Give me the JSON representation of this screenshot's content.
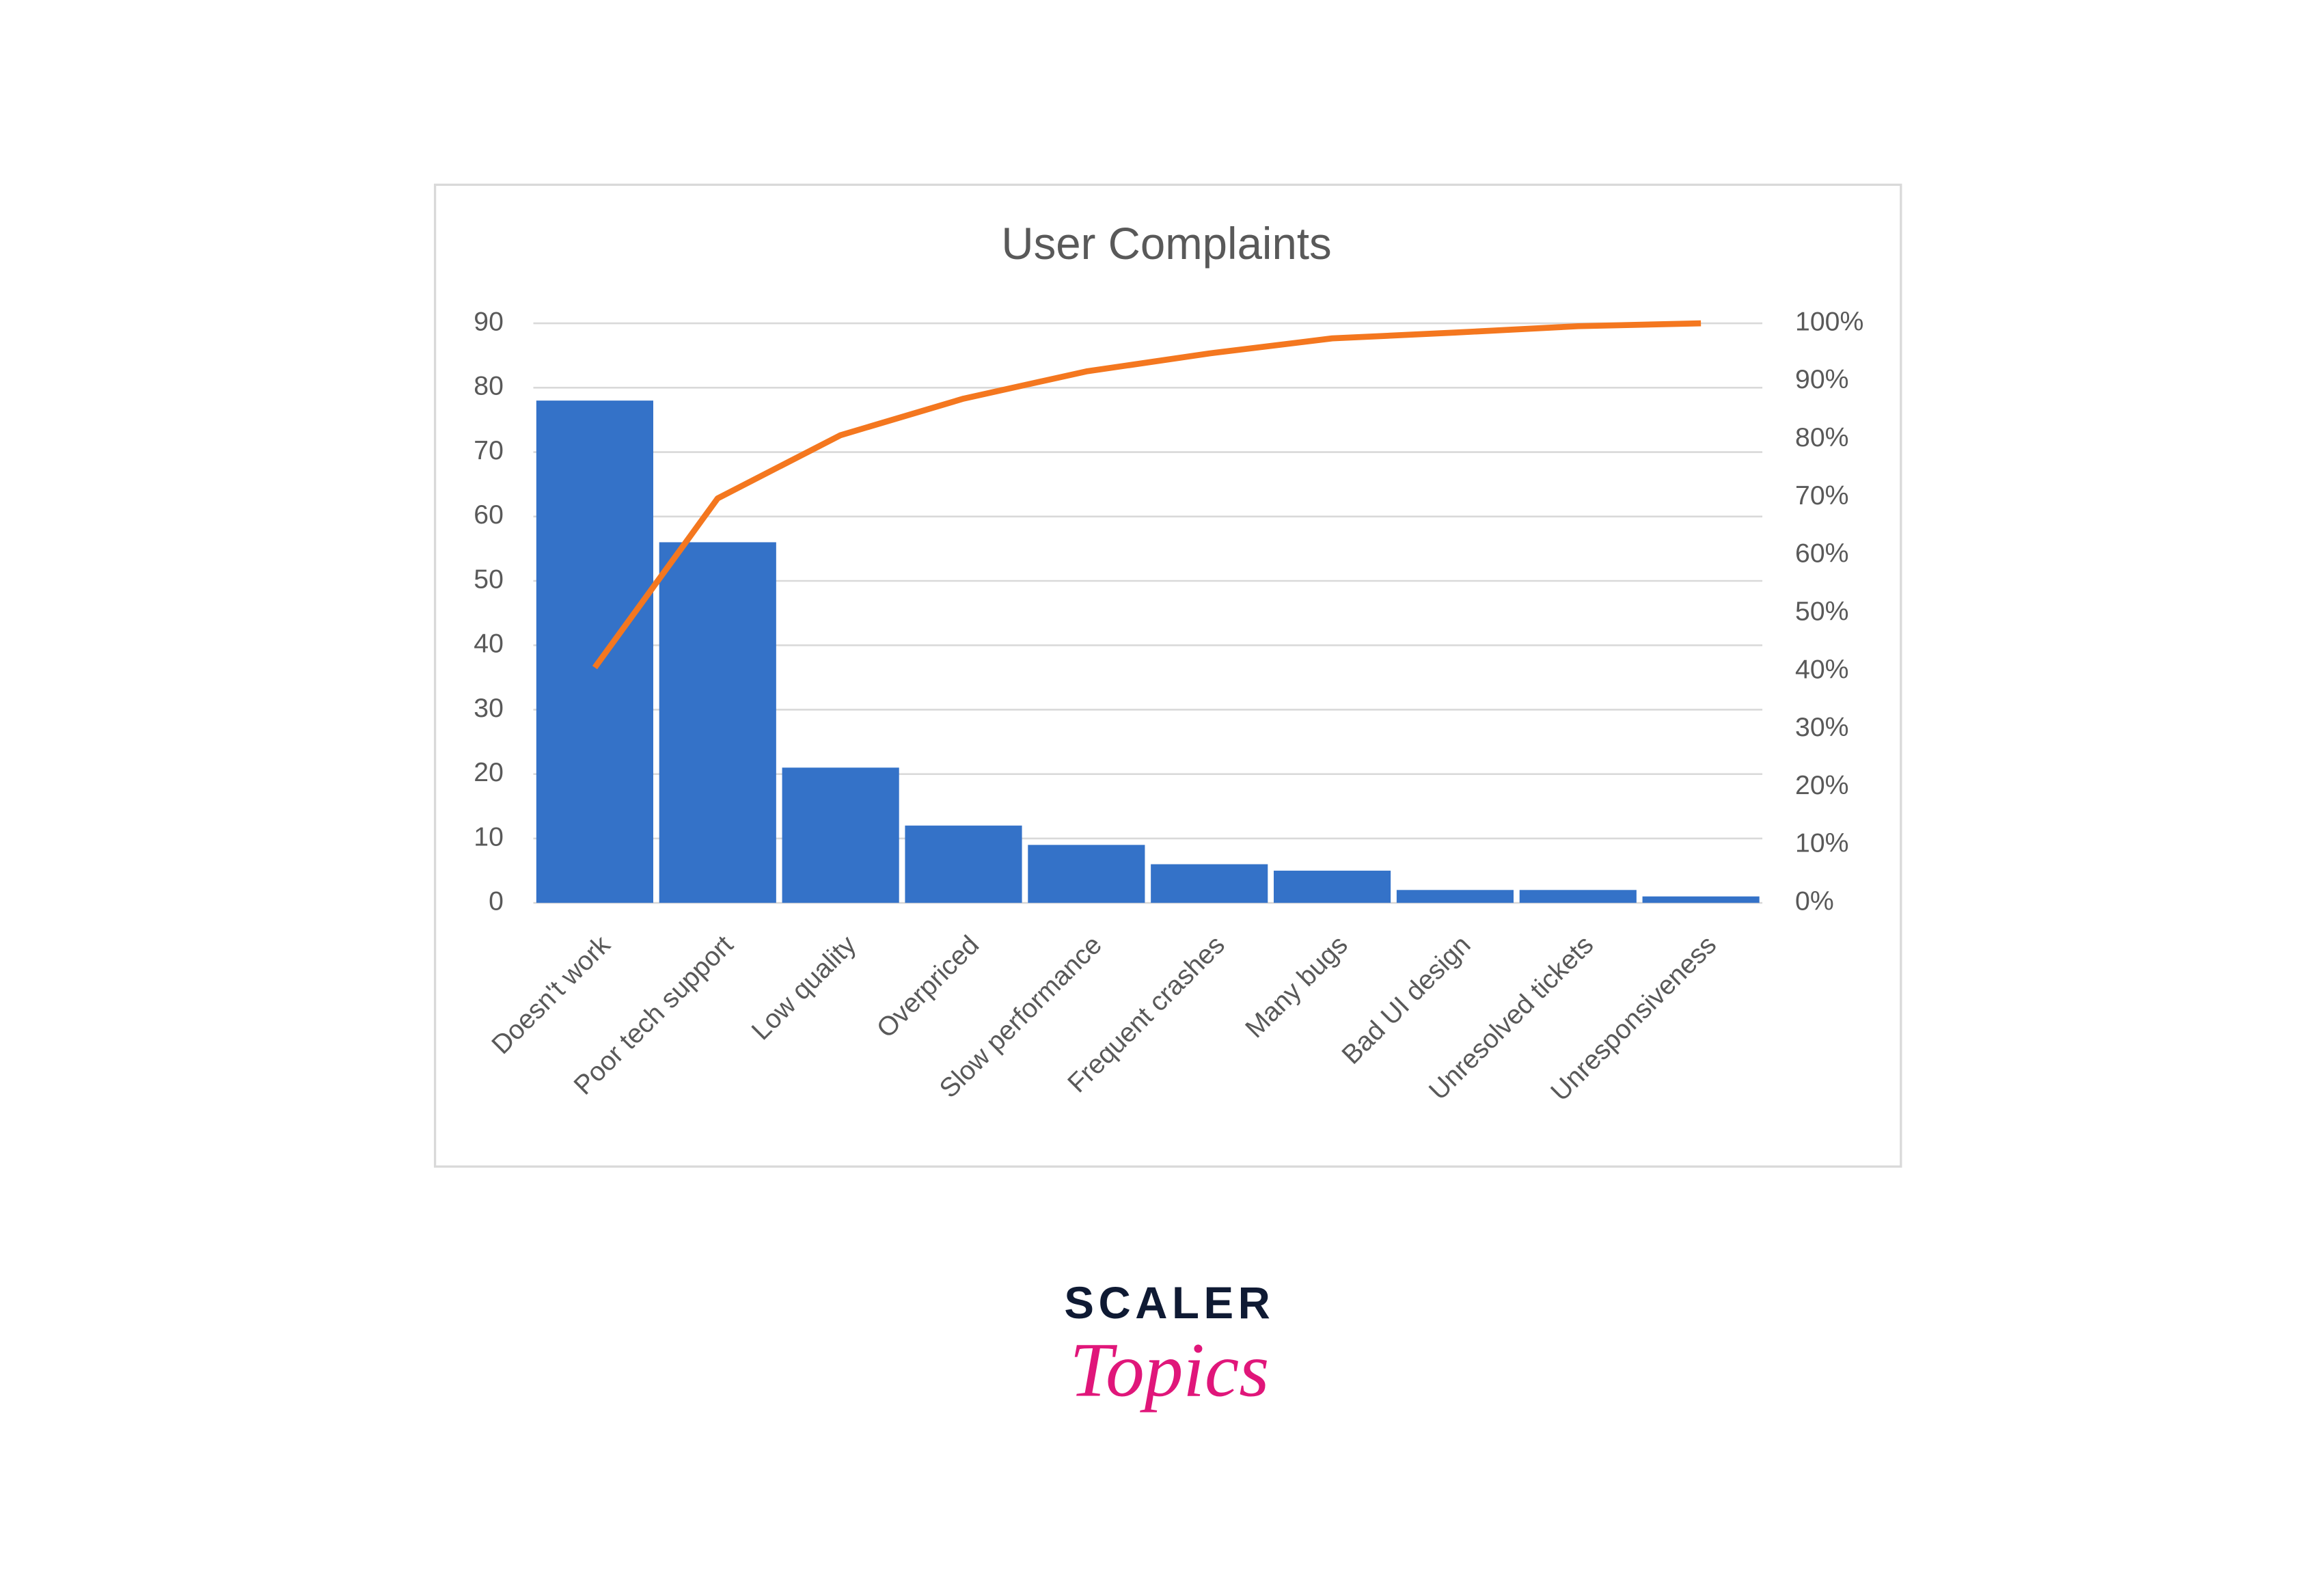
{
  "chart_data": {
    "type": "pareto",
    "title": "User Complaints",
    "categories": [
      "Doesn't work",
      "Poor tech support",
      "Low quality",
      "Overpriced",
      "Slow performance",
      "Frequent crashes",
      "Many bugs",
      "Bad UI design",
      "Unresolved tickets",
      "Unresponsiveness"
    ],
    "series": [
      {
        "type": "bar",
        "color": "#3472c8",
        "values": [
          78,
          56,
          21,
          12,
          9,
          6,
          5,
          2,
          2,
          1
        ]
      },
      {
        "type": "line",
        "axis": "y2",
        "color": "#f4771f",
        "values": [
          40.6,
          69.8,
          80.7,
          87,
          91.7,
          94.8,
          97.4,
          98.4,
          99.5,
          100
        ]
      }
    ],
    "ylim": [
      0,
      90
    ],
    "yticks": [
      0,
      10,
      20,
      30,
      40,
      50,
      60,
      70,
      80,
      90
    ],
    "y2lim": [
      0,
      100
    ],
    "y2ticks": [
      {
        "value": 0,
        "label": "0%"
      },
      {
        "value": 10,
        "label": "10%"
      },
      {
        "value": 20,
        "label": "20%"
      },
      {
        "value": 30,
        "label": "30%"
      },
      {
        "value": 40,
        "label": "40%"
      },
      {
        "value": 50,
        "label": "50%"
      },
      {
        "value": 60,
        "label": "60%"
      },
      {
        "value": 70,
        "label": "70%"
      },
      {
        "value": 80,
        "label": "80%"
      },
      {
        "value": 90,
        "label": "90%"
      },
      {
        "value": 100,
        "label": "100%"
      }
    ],
    "grid": true
  },
  "logo": {
    "line1": "SCALER",
    "line2": "Topics"
  }
}
